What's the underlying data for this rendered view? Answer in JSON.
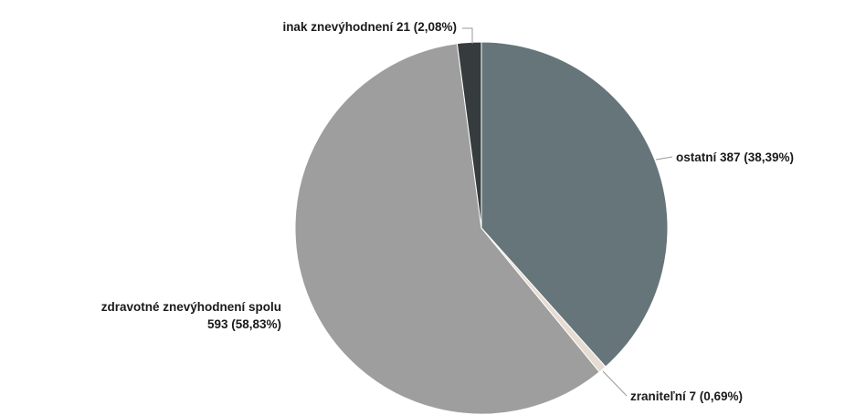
{
  "chart_data": {
    "type": "pie",
    "title": "",
    "start_angle_deg": 0,
    "direction": "clockwise",
    "legend": "none",
    "slices": [
      {
        "id": "ostatni",
        "name": "ostatní",
        "value": 387,
        "percent": "38,39%",
        "color": "#66757a",
        "label_lines": [
          "ostatní 387 (38,39%)"
        ]
      },
      {
        "id": "zranitelni",
        "name": "zraniteľní",
        "value": 7,
        "percent": "0,69%",
        "color": "#e6dcd2",
        "label_lines": [
          "zraniteľní 7 (0,69%)"
        ]
      },
      {
        "id": "zdravotne",
        "name": "zdravotné znevýhodnení spolu",
        "value": 593,
        "percent": "58,83%",
        "color": "#9e9e9e",
        "label_lines": [
          "zdravotné znevýhodnení spolu",
          "593 (58,83%)"
        ]
      },
      {
        "id": "inak",
        "name": "inak znevýhodnení",
        "value": 21,
        "percent": "2,08%",
        "color": "#363c3d",
        "label_lines": [
          "inak znevýhodnení 21 (2,08%)"
        ]
      }
    ]
  }
}
